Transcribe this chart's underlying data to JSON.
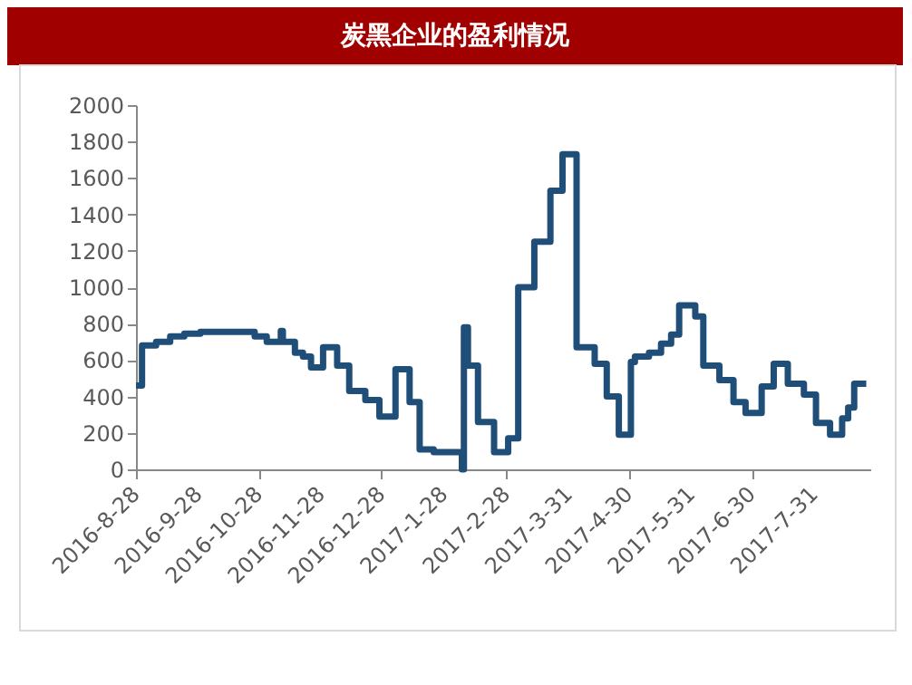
{
  "chart_data": {
    "type": "step",
    "title": "炭黑企业的盈利情况",
    "x": [
      "2016-08-28",
      "2016-08-31",
      "2016-09-07",
      "2016-09-14",
      "2016-09-21",
      "2016-09-29",
      "2016-10-26",
      "2016-11-01",
      "2016-11-08",
      "2016-11-09",
      "2016-11-15",
      "2016-11-19",
      "2016-11-23",
      "2016-11-29",
      "2016-12-06",
      "2016-12-12",
      "2016-12-20",
      "2016-12-27",
      "2017-01-04",
      "2017-01-11",
      "2017-01-16",
      "2017-01-23",
      "2017-02-06",
      "2017-02-07",
      "2017-02-09",
      "2017-02-14",
      "2017-02-22",
      "2017-03-01",
      "2017-03-06",
      "2017-03-14",
      "2017-03-22",
      "2017-03-28",
      "2017-04-04",
      "2017-04-13",
      "2017-04-19",
      "2017-04-25",
      "2017-05-01",
      "2017-05-03",
      "2017-05-10",
      "2017-05-16",
      "2017-05-21",
      "2017-05-25",
      "2017-06-02",
      "2017-06-06",
      "2017-06-14",
      "2017-06-21",
      "2017-06-27",
      "2017-07-05",
      "2017-07-11",
      "2017-07-18",
      "2017-07-26",
      "2017-08-01",
      "2017-08-08",
      "2017-08-14",
      "2017-08-17",
      "2017-08-20",
      "2017-08-26"
    ],
    "series": [
      {
        "color": "#1f4e79",
        "values": [
          460,
          680,
          700,
          730,
          745,
          755,
          730,
          700,
          760,
          700,
          640,
          620,
          560,
          670,
          570,
          430,
          380,
          290,
          550,
          370,
          110,
          95,
          0,
          780,
          570,
          260,
          95,
          170,
          1000,
          1250,
          1530,
          1730,
          670,
          580,
          400,
          190,
          590,
          620,
          640,
          690,
          740,
          900,
          840,
          570,
          490,
          370,
          310,
          455,
          580,
          470,
          410,
          255,
          190,
          280,
          340,
          470,
          470
        ]
      }
    ],
    "xlim": [
      "2016-08-28",
      "2017-08-28"
    ],
    "xticks": [
      {
        "value": "2016-08-28",
        "label": "2016-8-28"
      },
      {
        "value": "2016-09-28",
        "label": "2016-9-28"
      },
      {
        "value": "2016-10-28",
        "label": "2016-10-28"
      },
      {
        "value": "2016-11-28",
        "label": "2016-11-28"
      },
      {
        "value": "2016-12-28",
        "label": "2016-12-28"
      },
      {
        "value": "2017-01-28",
        "label": "2017-1-28"
      },
      {
        "value": "2017-02-28",
        "label": "2017-2-28"
      },
      {
        "value": "2017-03-31",
        "label": "2017-3-31"
      },
      {
        "value": "2017-04-30",
        "label": "2017-4-30"
      },
      {
        "value": "2017-05-31",
        "label": "2017-5-31"
      },
      {
        "value": "2017-06-30",
        "label": "2017-6-30"
      },
      {
        "value": "2017-07-31",
        "label": "2017-7-31"
      }
    ],
    "ylim": [
      0,
      2000
    ],
    "yticks": [
      0,
      200,
      400,
      600,
      800,
      1000,
      1200,
      1400,
      1600,
      1800,
      2000
    ],
    "grid": false,
    "legend": false,
    "marker": "none",
    "line_style": "solid"
  }
}
